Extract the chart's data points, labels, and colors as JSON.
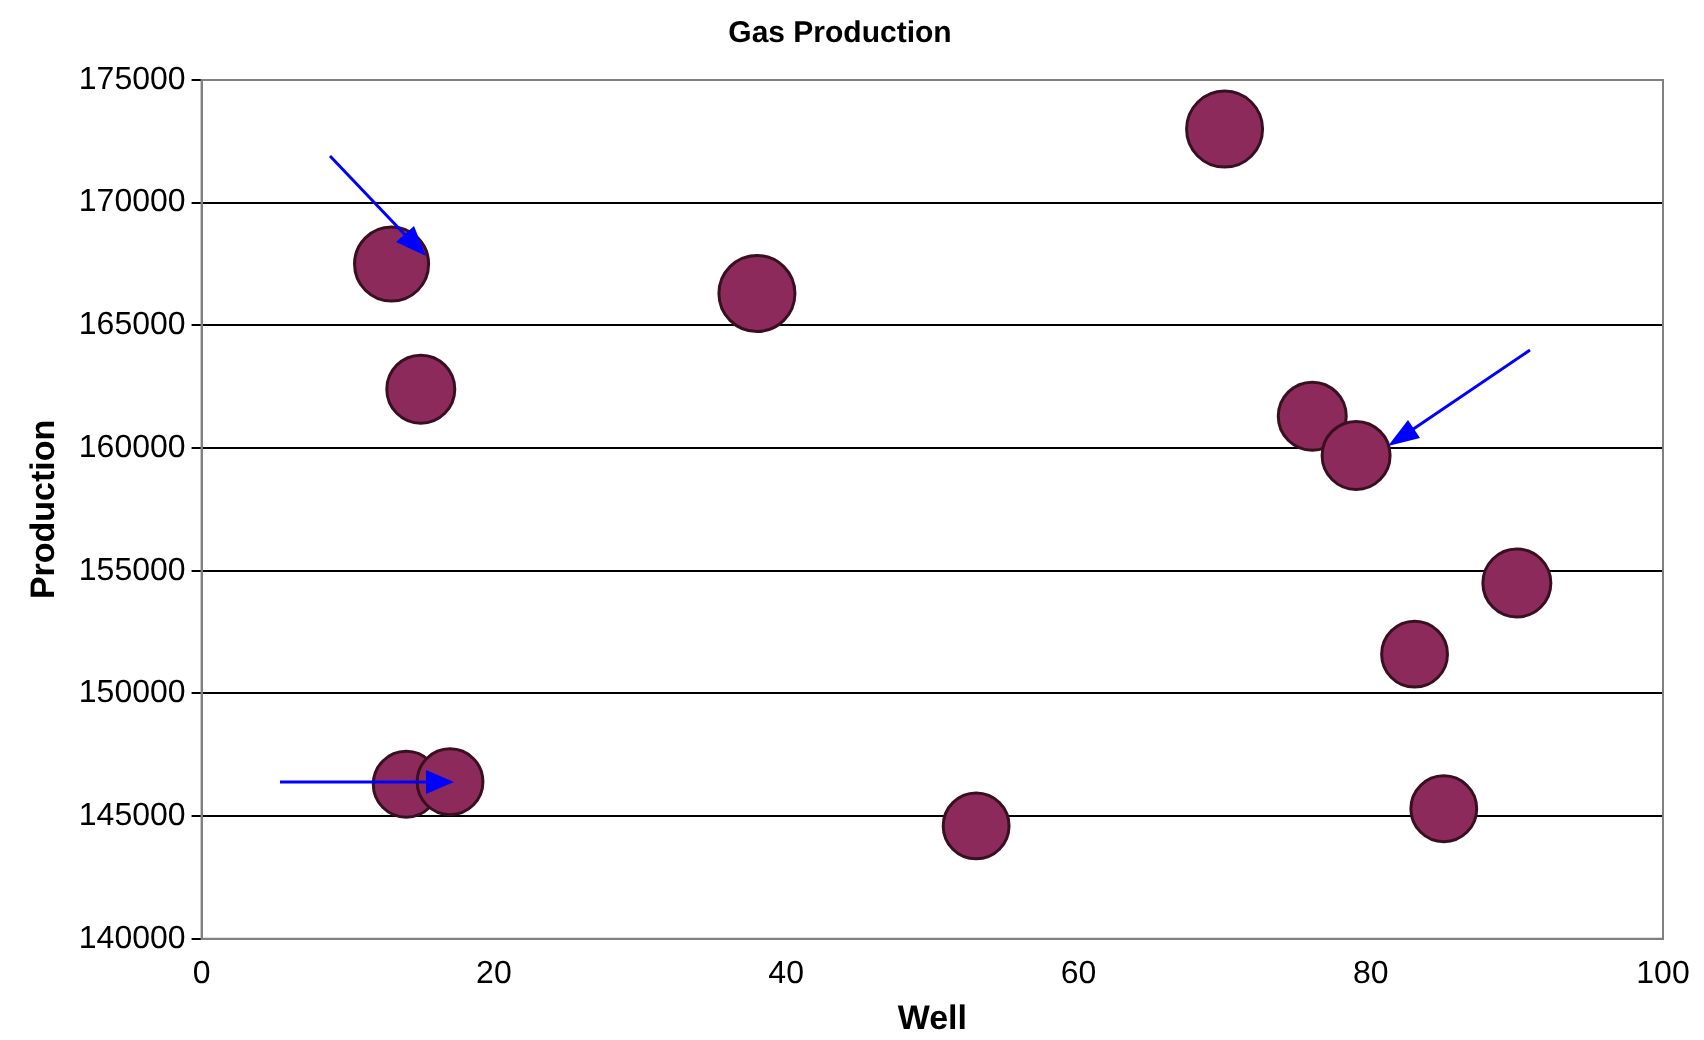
{
  "chart_data": {
    "type": "bubble",
    "title": "Gas Production",
    "xlabel": "Well",
    "ylabel": "Production",
    "xlim": [
      0,
      100
    ],
    "xticks": [
      0,
      20,
      40,
      60,
      80,
      100
    ],
    "ylim": [
      140000,
      175000
    ],
    "yticks": [
      140000,
      145000,
      150000,
      155000,
      160000,
      165000,
      170000,
      175000
    ],
    "grid": "y",
    "legend": false,
    "marker": "circle",
    "series": [
      {
        "color": "#8c2a5c",
        "x": [
          13,
          15,
          38,
          70,
          76,
          79,
          90,
          83,
          85,
          53,
          14,
          17
        ],
        "values": [
          167500,
          162400,
          166300,
          173000,
          161300,
          159700,
          154500,
          151600,
          145300,
          144600,
          146300,
          146400
        ],
        "sizes": [
          0.95,
          0.8,
          1,
          1,
          0.8,
          0.8,
          0.8,
          0.75,
          0.75,
          0.75,
          0.75,
          0.75
        ]
      }
    ]
  }
}
